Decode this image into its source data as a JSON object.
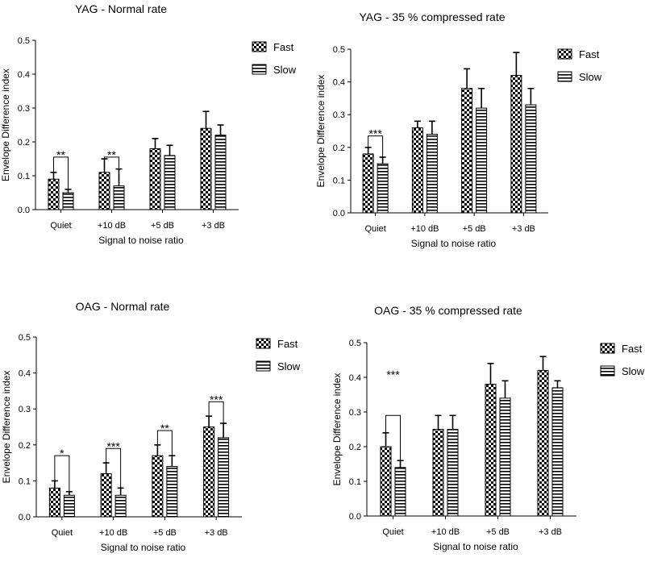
{
  "legend": {
    "fast_label": "Fast",
    "slow_label": "Slow"
  },
  "chart_data": [
    {
      "type": "bar",
      "title": "YAG - Normal rate",
      "xlabel": "Signal to noise ratio",
      "ylabel": "Envelope Difference index",
      "categories": [
        "Quiet",
        "+10 dB",
        "+5 dB",
        "+3 dB"
      ],
      "ylim": [
        0,
        0.5
      ],
      "yticks": [
        "0.0",
        "0.1",
        "0.2",
        "0.3",
        "0.4",
        "0.5"
      ],
      "legend_position": "top-right",
      "series": [
        {
          "name": "Fast",
          "values": [
            0.09,
            0.11,
            0.18,
            0.24
          ],
          "errors": [
            0.02,
            0.04,
            0.03,
            0.05
          ]
        },
        {
          "name": "Slow",
          "values": [
            0.05,
            0.07,
            0.16,
            0.22
          ],
          "errors": [
            0.01,
            0.05,
            0.03,
            0.03
          ]
        }
      ],
      "significance": [
        {
          "category_index": 0,
          "label": "**",
          "top": 0.155
        },
        {
          "category_index": 1,
          "label": "**",
          "top": 0.155
        }
      ]
    },
    {
      "type": "bar",
      "title": "YAG - 35 % compressed rate",
      "xlabel": "Signal to noise ratio",
      "ylabel": "Envelope Difference index",
      "categories": [
        "Quiet",
        "+10 dB",
        "+5 dB",
        "+3 dB"
      ],
      "ylim": [
        0,
        0.5
      ],
      "yticks": [
        "0.0",
        "0.1",
        "0.2",
        "0.3",
        "0.4",
        "0.5"
      ],
      "legend_position": "top-right",
      "series": [
        {
          "name": "Fast",
          "values": [
            0.18,
            0.26,
            0.38,
            0.42
          ],
          "errors": [
            0.02,
            0.02,
            0.06,
            0.07
          ]
        },
        {
          "name": "Slow",
          "values": [
            0.15,
            0.24,
            0.32,
            0.33
          ],
          "errors": [
            0.02,
            0.04,
            0.06,
            0.05
          ]
        }
      ],
      "significance": [
        {
          "category_index": 0,
          "label": "***",
          "top": 0.235
        }
      ]
    },
    {
      "type": "bar",
      "title": "OAG - Normal rate",
      "xlabel": "Signal to noise ratio",
      "ylabel": "Envelope Difference index",
      "categories": [
        "Quiet",
        "+10 dB",
        "+5 dB",
        "+3 dB"
      ],
      "ylim": [
        0,
        0.5
      ],
      "yticks": [
        "0.0",
        "0.1",
        "0.2",
        "0.3",
        "0.4",
        "0.5"
      ],
      "legend_position": "top-right",
      "series": [
        {
          "name": "Fast",
          "values": [
            0.08,
            0.12,
            0.17,
            0.25
          ],
          "errors": [
            0.02,
            0.03,
            0.03,
            0.03
          ]
        },
        {
          "name": "Slow",
          "values": [
            0.06,
            0.06,
            0.14,
            0.22
          ],
          "errors": [
            0.01,
            0.02,
            0.03,
            0.04
          ]
        }
      ],
      "significance": [
        {
          "category_index": 0,
          "label": "*",
          "top": 0.17
        },
        {
          "category_index": 1,
          "label": "***",
          "top": 0.19
        },
        {
          "category_index": 2,
          "label": "**",
          "top": 0.24
        },
        {
          "category_index": 3,
          "label": "***",
          "top": 0.32
        }
      ]
    },
    {
      "type": "bar",
      "title": "OAG - 35 % compressed rate",
      "xlabel": "Signal to noise ratio",
      "ylabel": "Envelope Difference index",
      "categories": [
        "Quiet",
        "+10 dB",
        "+5 dB",
        "+3 dB"
      ],
      "ylim": [
        0,
        0.5
      ],
      "yticks": [
        "0.0",
        "0.1",
        "0.2",
        "0.3",
        "0.4",
        "0.5"
      ],
      "legend_position": "top-right",
      "series": [
        {
          "name": "Fast",
          "values": [
            0.2,
            0.25,
            0.38,
            0.42
          ],
          "errors": [
            0.04,
            0.04,
            0.06,
            0.04
          ]
        },
        {
          "name": "Slow",
          "values": [
            0.14,
            0.25,
            0.34,
            0.37
          ],
          "errors": [
            0.02,
            0.04,
            0.05,
            0.02
          ]
        }
      ],
      "significance": [
        {
          "category_index": 0,
          "label": "***",
          "top": 0.38,
          "label_top": 0.41,
          "bracket_top": 0.29
        }
      ]
    }
  ]
}
